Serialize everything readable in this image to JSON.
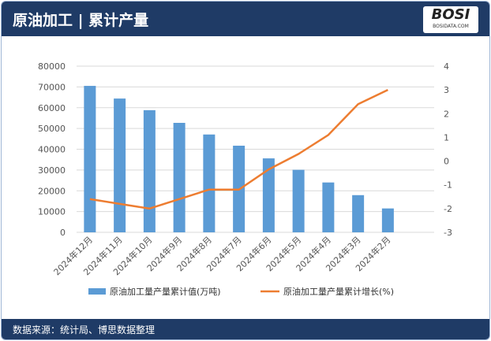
{
  "header": {
    "title": "原油加工 | 累计产量",
    "logo": "BOSI",
    "logo_sub": "BOSIDATA.COM"
  },
  "footer": {
    "source": "数据来源：统计局、博思数据整理"
  },
  "chart_data": {
    "type": "bar+line",
    "categories": [
      "2024年12月",
      "2024年11月",
      "2024年10月",
      "2024年9月",
      "2024年8月",
      "2024年7月",
      "2024年6月",
      "2024年5月",
      "2024年4月",
      "2024年3月",
      "2024年2月"
    ],
    "series": [
      {
        "name": "原油加工量产量累计值(万吨)",
        "type": "bar",
        "axis": "left",
        "color": "#5b9bd5",
        "values": [
          70500,
          64400,
          58800,
          52700,
          47100,
          41700,
          35600,
          30100,
          24000,
          17900,
          11500
        ]
      },
      {
        "name": "原油加工量产量累计增长(%)",
        "type": "line",
        "axis": "right",
        "color": "#ed7d31",
        "values": [
          -1.6,
          -1.8,
          -2.0,
          -1.6,
          -1.2,
          -1.2,
          -0.35,
          0.3,
          1.1,
          2.4,
          3.0
        ]
      }
    ],
    "y_left": {
      "min": 0,
      "max": 80000,
      "ticks": [
        0,
        10000,
        20000,
        30000,
        40000,
        50000,
        60000,
        70000,
        80000
      ]
    },
    "y_right": {
      "min": -3,
      "max": 4,
      "ticks": [
        -3,
        -2,
        -1,
        0,
        1,
        2,
        3,
        4
      ]
    },
    "grid": true,
    "legend": "bottom"
  }
}
